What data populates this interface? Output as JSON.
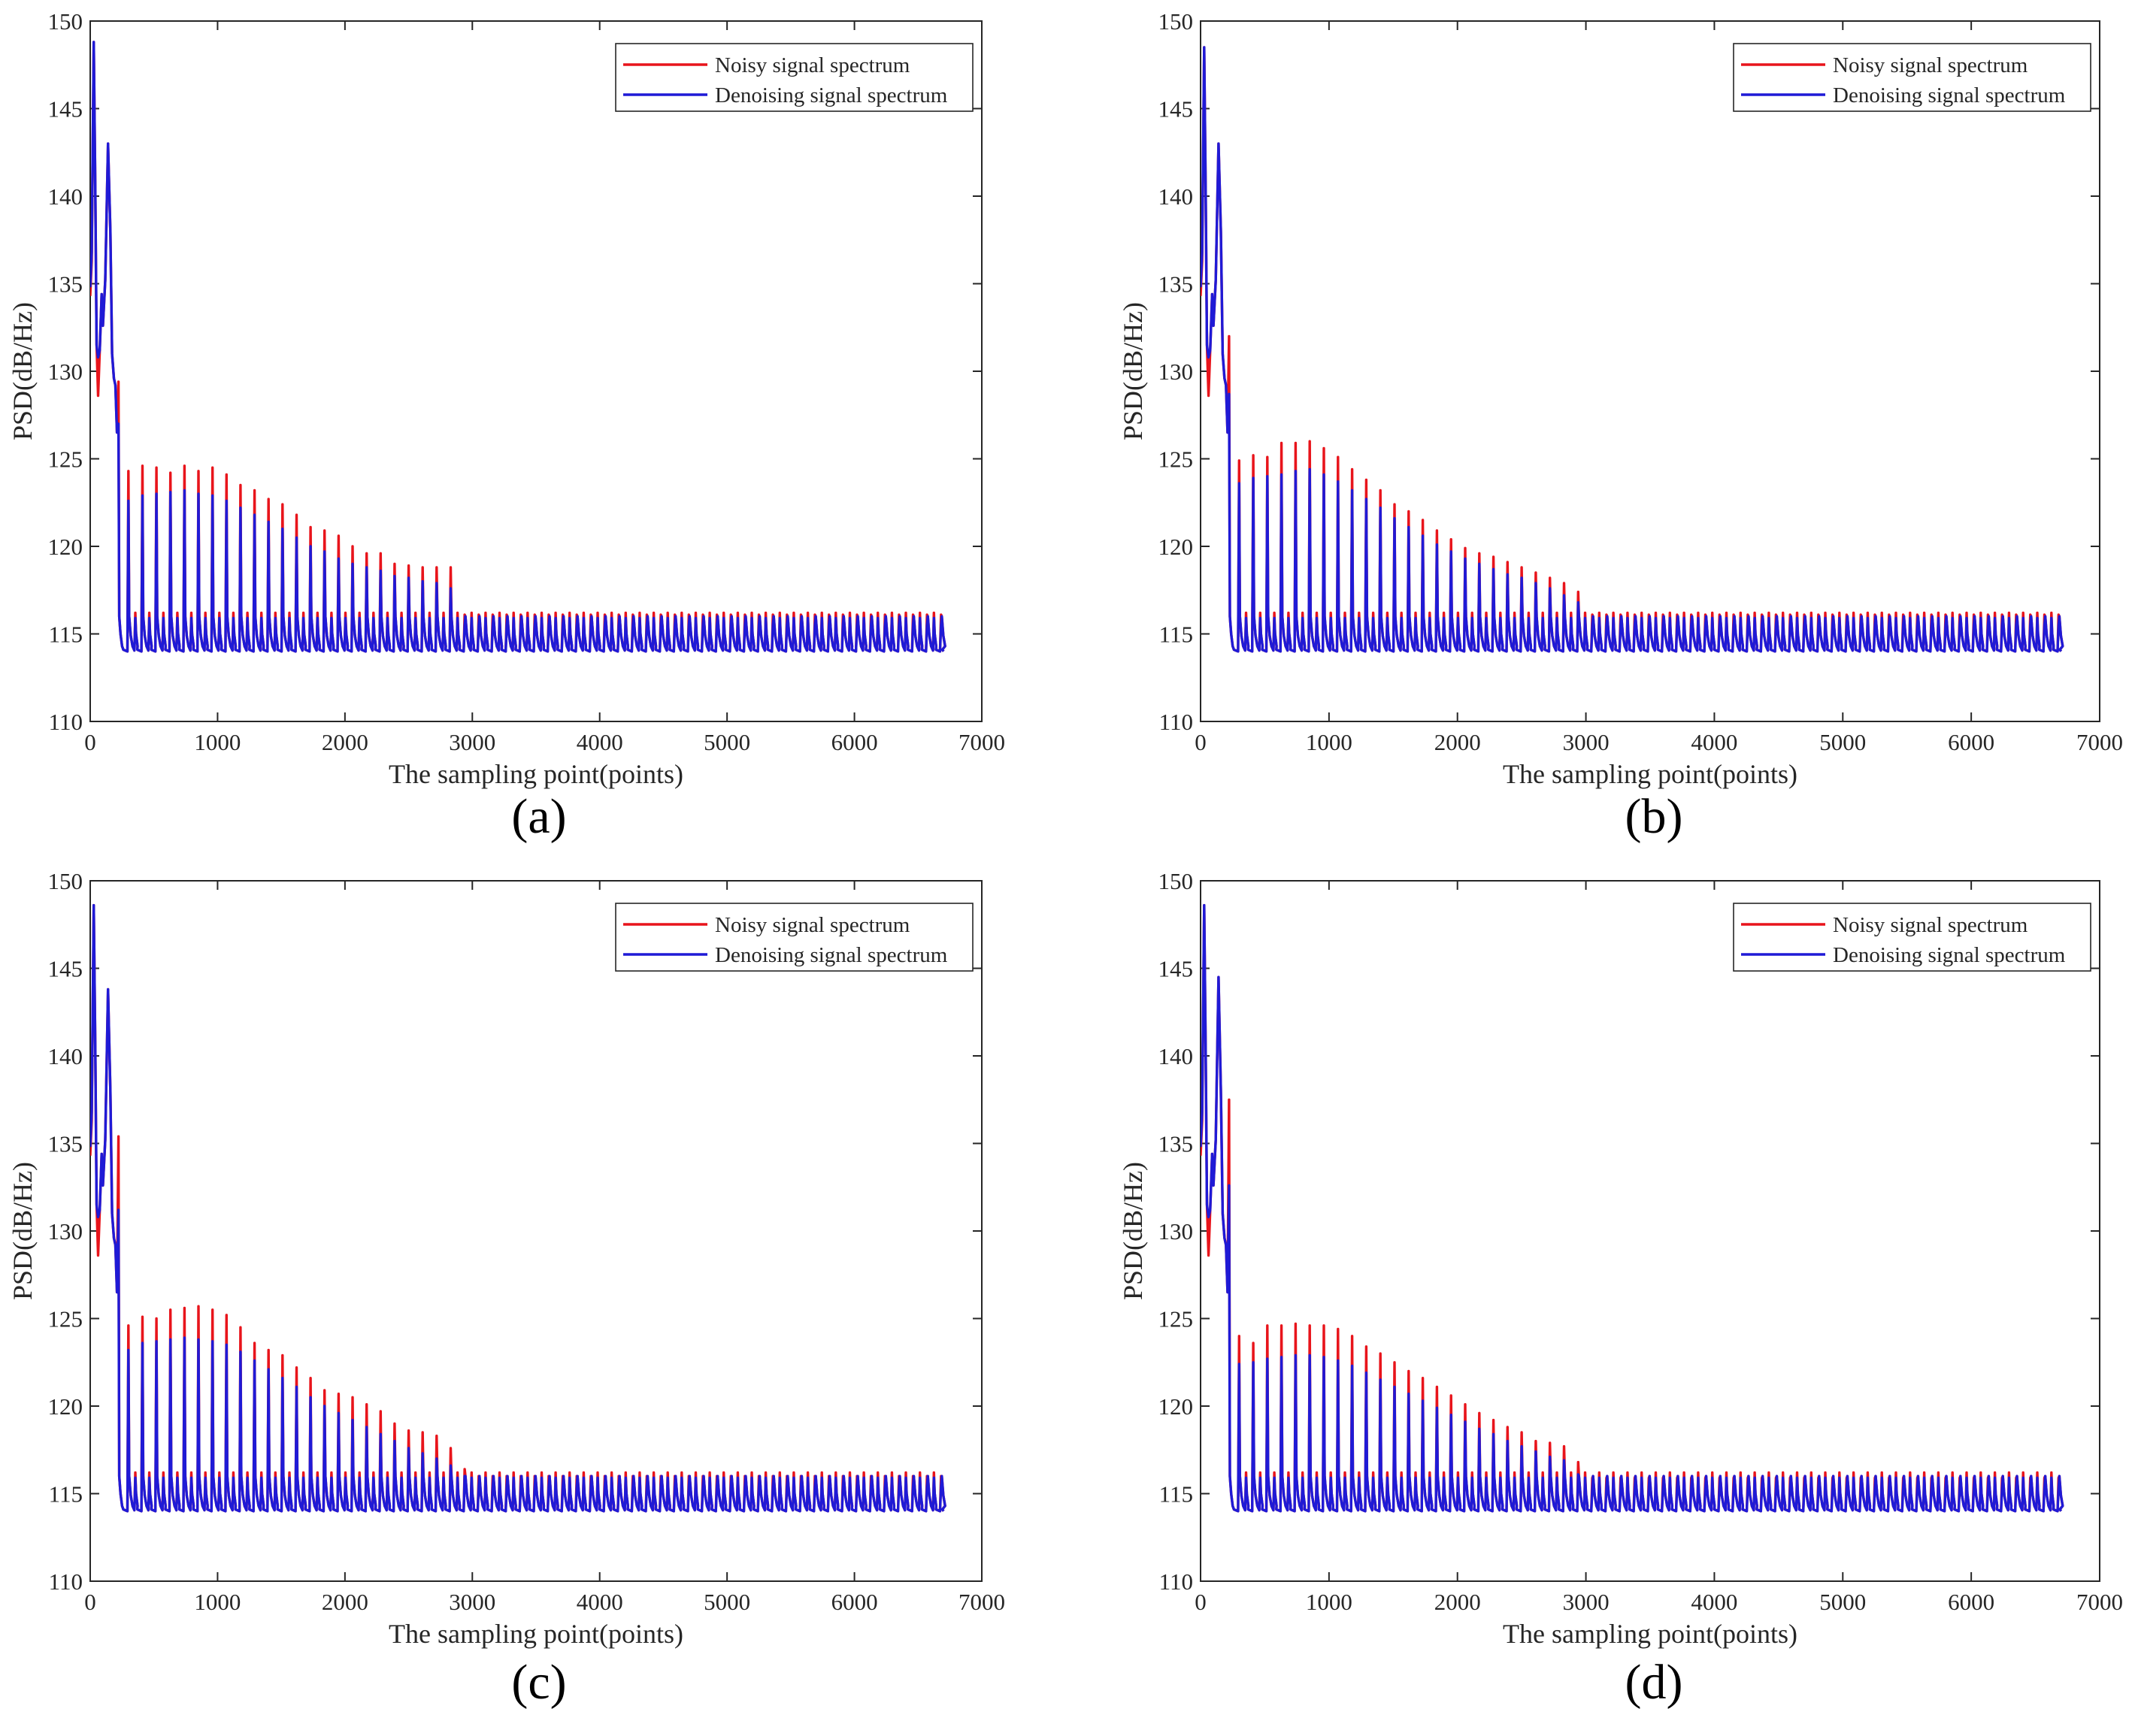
{
  "colors": {
    "noisy": "#e8141b",
    "denoised": "#1f1ad6",
    "axis": "#262626"
  },
  "chart_data": [
    {
      "type": "line",
      "label": "(a)",
      "xlabel": "The sampling point(points)",
      "ylabel": "PSD(dB/Hz)",
      "xlim": [
        0,
        7000
      ],
      "ylim": [
        110,
        150
      ],
      "xticks": [
        0,
        1000,
        2000,
        3000,
        4000,
        5000,
        6000,
        7000
      ],
      "yticks": [
        110,
        115,
        120,
        125,
        130,
        135,
        140,
        145,
        150
      ],
      "legend": {
        "position": "top-right",
        "entries": [
          "Noisy signal spectrum",
          "Denoising signal spectrum"
        ]
      },
      "series": [
        {
          "name": "Noisy signal spectrum",
          "initial_peaks": [
            148.8,
            143.0
          ],
          "harmonic_peaks": [
            129.4,
            124.3,
            124.6,
            124.5,
            124.2,
            124.6,
            124.3,
            124.5,
            124.1,
            123.5,
            123.2,
            122.7,
            122.4,
            121.8,
            121.1,
            120.9,
            120.6,
            120.0,
            119.6,
            119.6,
            119.0,
            118.9,
            118.8,
            118.8,
            118.8
          ],
          "tail_peak": 116.1,
          "floor": 114.0,
          "cutoff_x": 3050
        },
        {
          "name": "Denoising signal spectrum",
          "initial_peaks": [
            148.8,
            143.0
          ],
          "harmonic_peaks": [
            127.0,
            122.6,
            122.9,
            123.0,
            123.1,
            123.2,
            123.0,
            122.9,
            122.6,
            122.2,
            121.8,
            121.4,
            121.0,
            120.5,
            120.0,
            119.7,
            119.3,
            119.0,
            118.8,
            118.6,
            118.3,
            118.2,
            118.0,
            117.9,
            117.6
          ],
          "tail_peak": 115.5,
          "floor": 114.0,
          "cutoff_x": 3050
        }
      ]
    },
    {
      "type": "line",
      "label": "(b)",
      "xlabel": "The sampling point(points)",
      "ylabel": "PSD(dB/Hz)",
      "xlim": [
        0,
        7000
      ],
      "ylim": [
        110,
        150
      ],
      "xticks": [
        0,
        1000,
        2000,
        3000,
        4000,
        5000,
        6000,
        7000
      ],
      "yticks": [
        110,
        115,
        120,
        125,
        130,
        135,
        140,
        145,
        150
      ],
      "legend": {
        "position": "top-right",
        "entries": [
          "Noisy signal spectrum",
          "Denoising signal spectrum"
        ]
      },
      "series": [
        {
          "name": "Noisy signal spectrum",
          "initial_peaks": [
            148.5,
            143.0
          ],
          "harmonic_peaks": [
            132.0,
            124.9,
            125.2,
            125.1,
            125.9,
            125.9,
            126.0,
            125.6,
            125.1,
            124.4,
            123.8,
            123.2,
            122.4,
            122.0,
            121.5,
            120.9,
            120.4,
            119.9,
            119.6,
            119.4,
            119.1,
            118.8,
            118.5,
            118.2,
            117.9,
            117.4
          ],
          "tail_peak": 116.1,
          "floor": 114.0,
          "cutoff_x": 3200
        },
        {
          "name": "Denoising signal spectrum",
          "initial_peaks": [
            148.5,
            143.0
          ],
          "harmonic_peaks": [
            128.7,
            123.6,
            123.9,
            124.0,
            124.1,
            124.3,
            124.4,
            124.1,
            123.7,
            123.2,
            122.7,
            122.2,
            121.6,
            121.1,
            120.6,
            120.1,
            119.7,
            119.3,
            119.0,
            118.7,
            118.4,
            118.2,
            117.9,
            117.6,
            117.2,
            116.8
          ],
          "tail_peak": 115.5,
          "floor": 114.0,
          "cutoff_x": 3200
        }
      ]
    },
    {
      "type": "line",
      "label": "(c)",
      "xlabel": "The sampling point(points)",
      "ylabel": "PSD(dB/Hz)",
      "xlim": [
        0,
        7000
      ],
      "ylim": [
        110,
        150
      ],
      "xticks": [
        0,
        1000,
        2000,
        3000,
        4000,
        5000,
        6000,
        7000
      ],
      "yticks": [
        110,
        115,
        120,
        125,
        130,
        135,
        140,
        145,
        150
      ],
      "legend": {
        "position": "top-right",
        "entries": [
          "Noisy signal spectrum",
          "Denoising signal spectrum"
        ]
      },
      "series": [
        {
          "name": "Noisy signal spectrum",
          "initial_peaks": [
            148.6,
            143.8
          ],
          "harmonic_peaks": [
            135.4,
            124.6,
            125.1,
            125.0,
            125.5,
            125.6,
            125.7,
            125.5,
            125.2,
            124.5,
            123.6,
            123.2,
            122.9,
            122.2,
            121.6,
            120.9,
            120.7,
            120.5,
            120.1,
            119.7,
            119.0,
            118.6,
            118.5,
            118.3,
            117.6,
            116.4
          ],
          "tail_peak": 116.0,
          "floor": 114.0,
          "cutoff_x": 3200
        },
        {
          "name": "Denoising signal spectrum",
          "initial_peaks": [
            148.6,
            143.8
          ],
          "harmonic_peaks": [
            131.2,
            123.2,
            123.6,
            123.7,
            123.8,
            123.9,
            123.8,
            123.7,
            123.5,
            123.1,
            122.6,
            122.1,
            121.6,
            121.1,
            120.5,
            120.0,
            119.6,
            119.2,
            118.8,
            118.4,
            118.0,
            117.6,
            117.3,
            117.0,
            116.6,
            116.0
          ],
          "tail_peak": 115.4,
          "floor": 114.0,
          "cutoff_x": 3200
        }
      ]
    },
    {
      "type": "line",
      "label": "(d)",
      "xlabel": "The sampling point(points)",
      "ylabel": "PSD(dB/Hz)",
      "xlim": [
        0,
        7000
      ],
      "ylim": [
        110,
        150
      ],
      "xticks": [
        0,
        1000,
        2000,
        3000,
        4000,
        5000,
        6000,
        7000
      ],
      "yticks": [
        110,
        115,
        120,
        125,
        130,
        135,
        140,
        145,
        150
      ],
      "legend": {
        "position": "top-right",
        "entries": [
          "Noisy signal spectrum",
          "Denoising signal spectrum"
        ]
      },
      "series": [
        {
          "name": "Noisy signal spectrum",
          "initial_peaks": [
            148.6,
            144.5
          ],
          "harmonic_peaks": [
            137.5,
            124.0,
            123.6,
            124.6,
            124.6,
            124.7,
            124.6,
            124.6,
            124.4,
            124.0,
            123.4,
            123.0,
            122.5,
            122.0,
            121.6,
            121.1,
            120.6,
            120.1,
            119.6,
            119.2,
            118.8,
            118.5,
            118.0,
            117.9,
            117.7,
            116.8
          ],
          "tail_peak": 115.9,
          "floor": 114.0,
          "cutoff_x": 3200
        },
        {
          "name": "Denoising signal spectrum",
          "initial_peaks": [
            148.6,
            144.5
          ],
          "harmonic_peaks": [
            132.6,
            122.4,
            122.5,
            122.7,
            122.8,
            122.9,
            122.9,
            122.8,
            122.6,
            122.3,
            121.9,
            121.5,
            121.1,
            120.7,
            120.3,
            119.9,
            119.5,
            119.1,
            118.7,
            118.4,
            118.0,
            117.7,
            117.4,
            117.1,
            116.9,
            116.1
          ],
          "tail_peak": 115.3,
          "floor": 114.0,
          "cutoff_x": 3200
        }
      ]
    }
  ]
}
